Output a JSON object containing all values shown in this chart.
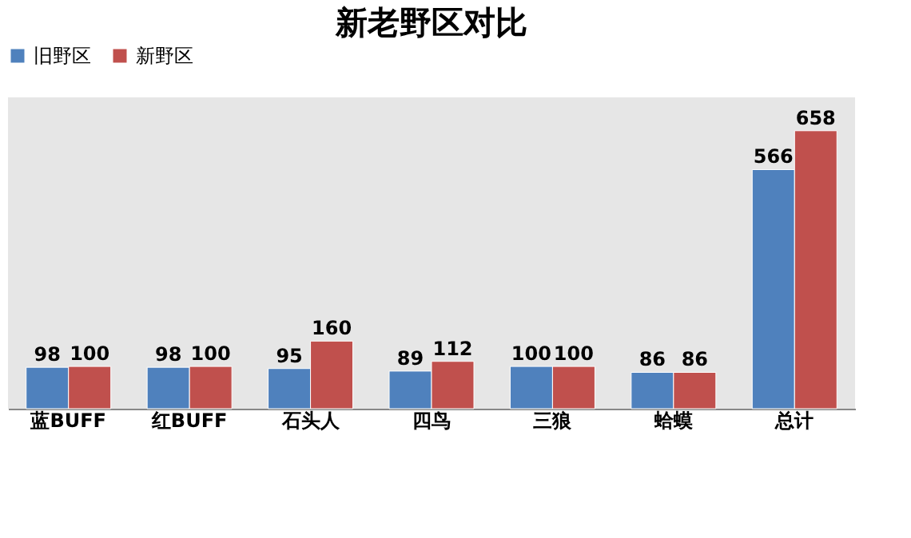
{
  "chart_data": {
    "type": "bar",
    "title": "新老野区对比",
    "categories": [
      "蓝BUFF",
      "红BUFF",
      "石头人",
      "四鸟",
      "三狼",
      "蛤蟆",
      "总计"
    ],
    "series": [
      {
        "name": "旧野区",
        "color": "#4f81bd",
        "values": [
          98,
          98,
          95,
          89,
          100,
          86,
          566
        ]
      },
      {
        "name": "新野区",
        "color": "#c0504d",
        "values": [
          100,
          100,
          160,
          112,
          100,
          86,
          658
        ]
      }
    ],
    "data_labels": true,
    "legend": "top",
    "grid": false
  }
}
